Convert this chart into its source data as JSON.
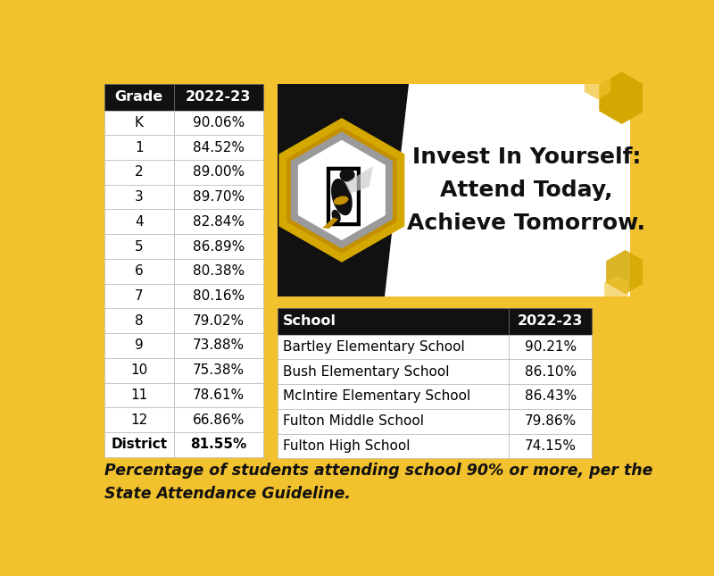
{
  "background_color": "#F2C12E",
  "grade_table": {
    "headers": [
      "Grade",
      "2022-23"
    ],
    "rows": [
      [
        "K",
        "90.06%"
      ],
      [
        "1",
        "84.52%"
      ],
      [
        "2",
        "89.00%"
      ],
      [
        "3",
        "89.70%"
      ],
      [
        "4",
        "82.84%"
      ],
      [
        "5",
        "86.89%"
      ],
      [
        "6",
        "80.38%"
      ],
      [
        "7",
        "80.16%"
      ],
      [
        "8",
        "79.02%"
      ],
      [
        "9",
        "73.88%"
      ],
      [
        "10",
        "75.38%"
      ],
      [
        "11",
        "78.61%"
      ],
      [
        "12",
        "66.86%"
      ],
      [
        "District",
        "81.55%"
      ]
    ],
    "header_bg": "#111111",
    "header_fg": "#ffffff",
    "row_bg": "#ffffff",
    "row_fg": "#000000"
  },
  "school_table": {
    "headers": [
      "School",
      "2022-23"
    ],
    "rows": [
      [
        "Bartley Elementary School",
        "90.21%"
      ],
      [
        "Bush Elementary School",
        "86.10%"
      ],
      [
        "McIntire Elementary School",
        "86.43%"
      ],
      [
        "Fulton Middle School",
        "79.86%"
      ],
      [
        "Fulton High School",
        "74.15%"
      ]
    ],
    "header_bg": "#111111",
    "header_fg": "#ffffff",
    "row_bg": "#ffffff",
    "row_fg": "#000000"
  },
  "banner_bg": "#111111",
  "banner_white_bg": "#ffffff",
  "banner_text": "Invest In Yourself:\nAttend Today,\nAchieve Tomorrow.",
  "banner_text_color": "#111111",
  "gold_hex_color": "#D4A800",
  "gold_hex_light": "#F2C12E",
  "gray_hex_color": "#9a9a9a",
  "footer_text": "Percentage of students attending school 90% or more, per the\nState Attendance Guideline.",
  "footer_color": "#111111"
}
